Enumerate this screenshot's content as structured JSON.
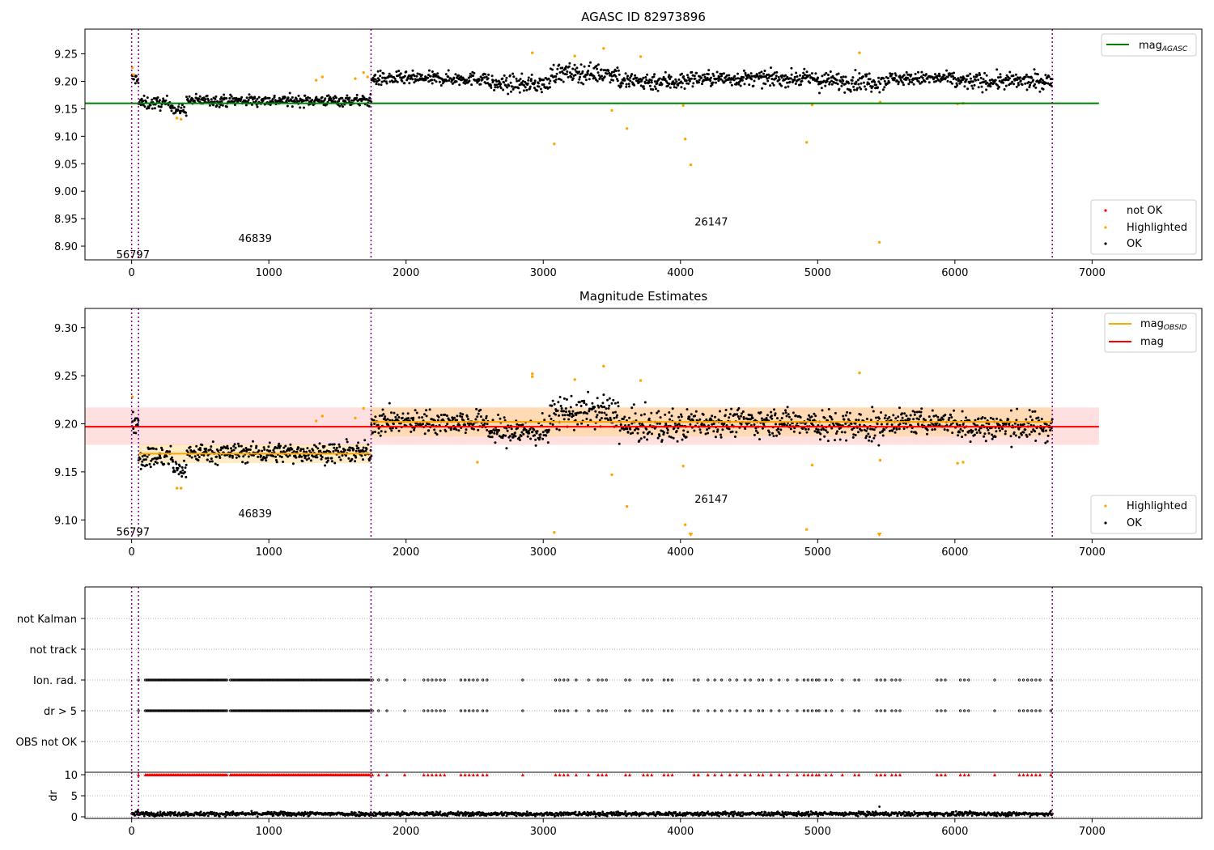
{
  "figure": {
    "background": "#ffffff"
  },
  "colors": {
    "ok": "#000000",
    "highlighted": "#ffa500",
    "not_ok": "#ff0000",
    "mag_agasc": "#008000",
    "mag_obsid": "#ffa500",
    "mag": "#ff0000",
    "obs_boundary": "#800080",
    "mag_band": "#ffcccc"
  },
  "chart_data": [
    {
      "id": "panel1",
      "type": "scatter",
      "title": "AGASC ID 82973896",
      "xlim": [
        -340,
        7800
      ],
      "ylim": [
        8.875,
        9.295
      ],
      "xticks": [
        0,
        1000,
        2000,
        3000,
        4000,
        5000,
        6000,
        7000
      ],
      "yticks": [
        "8.90",
        "8.95",
        "9.00",
        "9.05",
        "9.10",
        "9.15",
        "9.20",
        "9.25"
      ],
      "grid": false,
      "reference_lines": [
        {
          "name": "mag",
          "sub": "AGASC",
          "value": 9.16,
          "x_range": [
            -340,
            7050
          ],
          "color": "#008000"
        }
      ],
      "legends": [
        {
          "position": "top-right",
          "entries": [
            {
              "marker": "line",
              "color": "#008000",
              "label": "mag",
              "sub": "AGASC"
            }
          ]
        },
        {
          "position": "bottom-right",
          "entries": [
            {
              "marker": "dot",
              "color": "#ff0000",
              "label": "not OK"
            },
            {
              "marker": "dot",
              "color": "#ffa500",
              "label": "Highlighted"
            },
            {
              "marker": "dot",
              "color": "#000000",
              "label": "OK"
            }
          ]
        }
      ],
      "obs_boundaries": [
        0,
        50,
        1745,
        6710
      ],
      "obs_labels": [
        {
          "text": "56797",
          "x": 10,
          "y": 8.885
        },
        {
          "text": "46839",
          "x": 900,
          "y": 8.915
        },
        {
          "text": "26147",
          "x": 4225,
          "y": 8.945
        }
      ],
      "ok_segments": [
        {
          "x": [
            0,
            50
          ],
          "base": 9.205,
          "spread": 0.012
        },
        {
          "x": [
            50,
            300
          ],
          "base": 9.16,
          "spread": 0.014
        },
        {
          "x": [
            300,
            400
          ],
          "base": 9.148,
          "spread": 0.012
        },
        {
          "x": [
            400,
            1745
          ],
          "base": 9.165,
          "spread": 0.012
        },
        {
          "x": [
            1745,
            1900
          ],
          "base": 9.205,
          "spread": 0.016
        },
        {
          "x": [
            1900,
            2600
          ],
          "base": 9.205,
          "spread": 0.014
        },
        {
          "x": [
            2600,
            3050
          ],
          "base": 9.195,
          "spread": 0.018
        },
        {
          "x": [
            3050,
            3550
          ],
          "base": 9.215,
          "spread": 0.02
        },
        {
          "x": [
            3550,
            4050
          ],
          "base": 9.2,
          "spread": 0.02
        },
        {
          "x": [
            4050,
            5000
          ],
          "base": 9.205,
          "spread": 0.016
        },
        {
          "x": [
            5000,
            5500
          ],
          "base": 9.2,
          "spread": 0.02
        },
        {
          "x": [
            5500,
            6000
          ],
          "base": 9.205,
          "spread": 0.014
        },
        {
          "x": [
            6000,
            6710
          ],
          "base": 9.2,
          "spread": 0.018
        }
      ],
      "highlighted_points": [
        [
          5,
          9.225
        ],
        [
          15,
          9.212
        ],
        [
          330,
          9.133
        ],
        [
          360,
          9.131
        ],
        [
          1345,
          9.202
        ],
        [
          1390,
          9.208
        ],
        [
          1630,
          9.205
        ],
        [
          1690,
          9.216
        ],
        [
          1720,
          9.208
        ],
        [
          2920,
          9.252
        ],
        [
          3080,
          9.086
        ],
        [
          3230,
          9.246
        ],
        [
          3440,
          9.26
        ],
        [
          3500,
          9.147
        ],
        [
          3610,
          9.114
        ],
        [
          3710,
          9.245
        ],
        [
          4020,
          9.156
        ],
        [
          4035,
          9.095
        ],
        [
          4075,
          9.048
        ],
        [
          4920,
          9.089
        ],
        [
          4960,
          9.157
        ],
        [
          5305,
          9.252
        ],
        [
          5450,
          8.907
        ],
        [
          5455,
          9.162
        ],
        [
          6020,
          9.159
        ],
        [
          6060,
          9.16
        ]
      ],
      "not_ok_points": []
    },
    {
      "id": "panel2",
      "type": "scatter",
      "title": "Magnitude Estimates",
      "xlim": [
        -340,
        7800
      ],
      "ylim": [
        9.08,
        9.32
      ],
      "xticks": [
        0,
        1000,
        2000,
        3000,
        4000,
        5000,
        6000,
        7000
      ],
      "yticks": [
        "9.10",
        "9.15",
        "9.20",
        "9.25",
        "9.30"
      ],
      "grid": false,
      "reference_lines": [
        {
          "name": "mag",
          "value": 9.197,
          "x_range": [
            -340,
            7050
          ],
          "color": "#ff0000"
        }
      ],
      "mag_band": {
        "low": 9.178,
        "high": 9.217,
        "x_range": [
          -340,
          7050
        ]
      },
      "obsid_mags": [
        {
          "x": [
            50,
            1745
          ],
          "value": 9.169,
          "band": [
            9.159,
            9.179
          ]
        },
        {
          "x": [
            1745,
            6710
          ],
          "value": 9.202,
          "band": [
            9.187,
            9.217
          ]
        }
      ],
      "legends": [
        {
          "position": "top-right",
          "entries": [
            {
              "marker": "line",
              "color": "#ffa500",
              "label": "mag",
              "sub": "OBSID"
            },
            {
              "marker": "line",
              "color": "#ff0000",
              "label": "mag"
            }
          ]
        },
        {
          "position": "bottom-right",
          "entries": [
            {
              "marker": "dot",
              "color": "#ffa500",
              "label": "Highlighted"
            },
            {
              "marker": "dot",
              "color": "#000000",
              "label": "OK"
            }
          ]
        }
      ],
      "obs_boundaries": [
        0,
        50,
        1745,
        6710
      ],
      "obs_labels": [
        {
          "text": "56797",
          "x": 10,
          "y": 9.088
        },
        {
          "text": "46839",
          "x": 900,
          "y": 9.107
        },
        {
          "text": "26147",
          "x": 4225,
          "y": 9.122
        }
      ],
      "highlighted_points": [
        [
          5,
          9.228
        ],
        [
          330,
          9.133
        ],
        [
          360,
          9.133
        ],
        [
          1345,
          9.203
        ],
        [
          1390,
          9.208
        ],
        [
          1630,
          9.206
        ],
        [
          1690,
          9.216
        ],
        [
          2920,
          9.252
        ],
        [
          2920,
          9.249
        ],
        [
          3080,
          9.087
        ],
        [
          3230,
          9.246
        ],
        [
          3440,
          9.26
        ],
        [
          3500,
          9.147
        ],
        [
          3610,
          9.114
        ],
        [
          3710,
          9.245
        ],
        [
          4020,
          9.156
        ],
        [
          4035,
          9.095
        ],
        [
          4920,
          9.09
        ],
        [
          4960,
          9.157
        ],
        [
          5305,
          9.253
        ],
        [
          5455,
          9.162
        ],
        [
          6020,
          9.159
        ],
        [
          6060,
          9.16
        ],
        [
          2520,
          9.16
        ]
      ],
      "off_scale_low_markers": [
        4075,
        5450
      ]
    },
    {
      "id": "panel3",
      "type": "scatter",
      "title": "",
      "xlim": [
        -340,
        7800
      ],
      "categories": [
        "OBS not OK",
        "dr > 5",
        "Ion. rad.",
        "not track",
        "not Kalman"
      ],
      "grid": "horizontal dotted",
      "obs_boundaries": [
        0,
        50,
        1745,
        6710
      ],
      "flag_rows": [
        "dr > 5",
        "Ion. rad."
      ],
      "flag_regions": [
        {
          "x": [
            100,
            700
          ],
          "step": 9
        },
        {
          "x": [
            720,
            1745
          ],
          "step": 9
        }
      ],
      "flag_points": [
        50,
        1755,
        1800,
        1860,
        1990,
        2130,
        2160,
        2190,
        2220,
        2250,
        2280,
        2400,
        2430,
        2460,
        2490,
        2520,
        2560,
        2590,
        2850,
        3090,
        3120,
        3150,
        3180,
        3240,
        3330,
        3400,
        3430,
        3460,
        3600,
        3630,
        3730,
        3760,
        3790,
        3880,
        3910,
        3940,
        4100,
        4130,
        4200,
        4250,
        4300,
        4360,
        4410,
        4470,
        4510,
        4570,
        4600,
        4660,
        4720,
        4780,
        4850,
        4900,
        4930,
        4960,
        4990,
        5010,
        5060,
        5100,
        5180,
        5270,
        5300,
        5430,
        5460,
        5490,
        5540,
        5570,
        5600,
        5870,
        5900,
        5930,
        6040,
        6070,
        6100,
        6290,
        6470,
        6500,
        6530,
        6560,
        6590,
        6620,
        6700
      ]
    },
    {
      "id": "panel4",
      "type": "scatter",
      "title": "",
      "ylabel": "dr",
      "xlim": [
        -340,
        7800
      ],
      "ylim": [
        -1,
        11
      ],
      "xticks": [
        0,
        1000,
        2000,
        3000,
        4000,
        5000,
        6000,
        7000
      ],
      "yticks": [
        0,
        5,
        10
      ],
      "grid": "horizontal dotted",
      "obs_boundaries": [
        0,
        50,
        1745,
        6710
      ],
      "clipped_value": 10,
      "dr_base": 0.7,
      "dr_spread": 0.7,
      "outlier_points": [
        [
          5450,
          2.4
        ],
        [
          45,
          1.6
        ]
      ]
    }
  ]
}
